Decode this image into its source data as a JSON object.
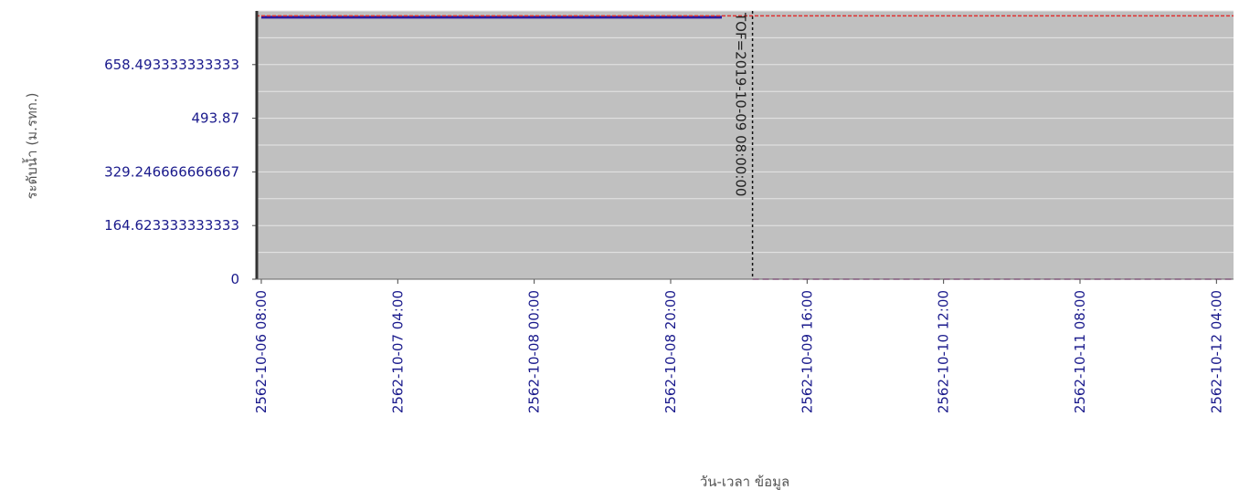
{
  "chart_data": {
    "type": "line",
    "title": "",
    "xlabel": "วัน-เวลา ข้อมูล",
    "ylabel": "ระดับน้ำ (ม.รทก.)",
    "x_tick_labels": [
      "2562-10-06 08:00",
      "2562-10-07 04:00",
      "2562-10-08 00:00",
      "2562-10-08 20:00",
      "2562-10-09 16:00",
      "2562-10-10 12:00",
      "2562-10-11 08:00",
      "2562-10-12 04:00"
    ],
    "x_tick_hours": [
      0,
      20,
      40,
      60,
      80,
      100,
      120,
      140
    ],
    "xlim_hours": [
      -0.8,
      142.5
    ],
    "y_tick_labels": [
      "0",
      "164.623333333333",
      "329.246666666667",
      "493.87",
      "658.493333333333"
    ],
    "y_tick_values": [
      0,
      164.623333333333,
      329.246666666667,
      493.87,
      658.493333333333
    ],
    "ylim": [
      0,
      823.12
    ],
    "grid": true,
    "plot_background": "#c0c0c0",
    "series": [
      {
        "color": "#2a1aa0",
        "style": "solid",
        "x_hours": [
          0,
          67.5
        ],
        "values": [
          804,
          804
        ]
      },
      {
        "color": "#e03030",
        "style": "dashed",
        "x_hours": [
          -0.8,
          142.5
        ],
        "values": [
          808,
          808
        ]
      },
      {
        "color": "#b0309a",
        "style": "dashed",
        "x_hours": [
          72,
          142.5
        ],
        "values": [
          0,
          0
        ]
      }
    ],
    "markers": [
      {
        "label": "TOF=2019-10-09 08:00:00",
        "x_hours": 72,
        "color": "#111111",
        "style": "dashed"
      }
    ]
  }
}
